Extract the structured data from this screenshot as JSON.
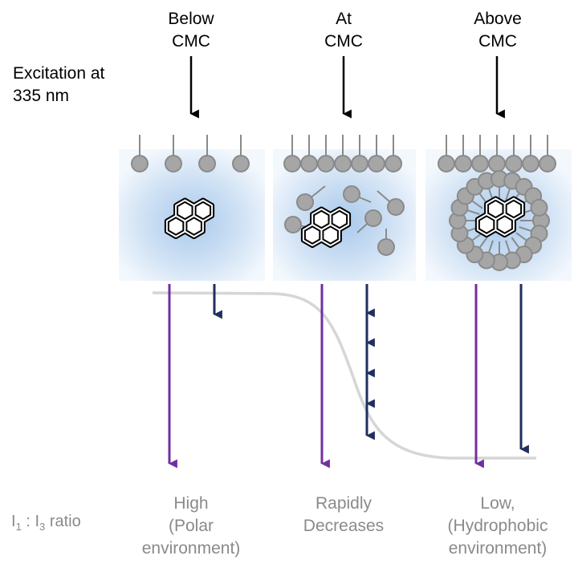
{
  "columns": [
    {
      "line1": "Below",
      "line2": "CMC",
      "result": [
        "High",
        "(Polar",
        "environment)"
      ]
    },
    {
      "line1": "At",
      "line2": "CMC",
      "result": [
        "Rapidly",
        "Decreases"
      ]
    },
    {
      "line1": "Above",
      "line2": "CMC",
      "result": [
        "Low,",
        "(Hydrophobic",
        "environment)"
      ]
    }
  ],
  "excitation": {
    "line1": "Excitation at",
    "line2": "335 nm"
  },
  "ratio_label": {
    "i1": "I",
    "sub1": "1",
    "sep": " : ",
    "i3": "I",
    "sub3": "3",
    "rest": " ratio"
  },
  "colors": {
    "purple": "#7030a0",
    "navy": "#1f2f5e",
    "curve": "#d6d6d6",
    "surfactant": "#a6a6a6",
    "box_glow": "#c7dcf2"
  }
}
